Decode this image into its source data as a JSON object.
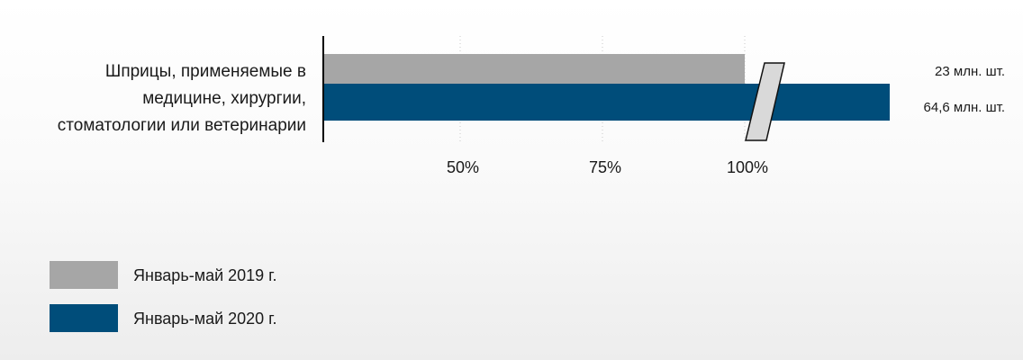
{
  "chart_data": {
    "type": "bar",
    "orientation": "horizontal",
    "category_label_lines": [
      "Шприцы, применяемые в",
      "медицине, хирургии,",
      "стоматологии или ветеринарии"
    ],
    "categories": [
      "Шприцы, применяемые в медицине, хирургии, стоматологии или ветеринарии"
    ],
    "series": [
      {
        "name": "Январь-май 2019 г.",
        "values": [
          100
        ],
        "value_label": "23 млн. шт.",
        "color": "#a6a6a6"
      },
      {
        "name": "Январь-май 2020 г.",
        "values": [
          280.9
        ],
        "value_label": "64,6  млн. шт.",
        "color": "#004d7a"
      }
    ],
    "x_ticks": [
      {
        "value": 50,
        "label": "50%"
      },
      {
        "value": 75,
        "label": "75%"
      },
      {
        "value": 100,
        "label": "100%"
      }
    ],
    "axis_break": true,
    "grid": "vertical-dotted",
    "legend_position": "bottom-left",
    "title": "",
    "xlabel": "",
    "ylabel": ""
  }
}
